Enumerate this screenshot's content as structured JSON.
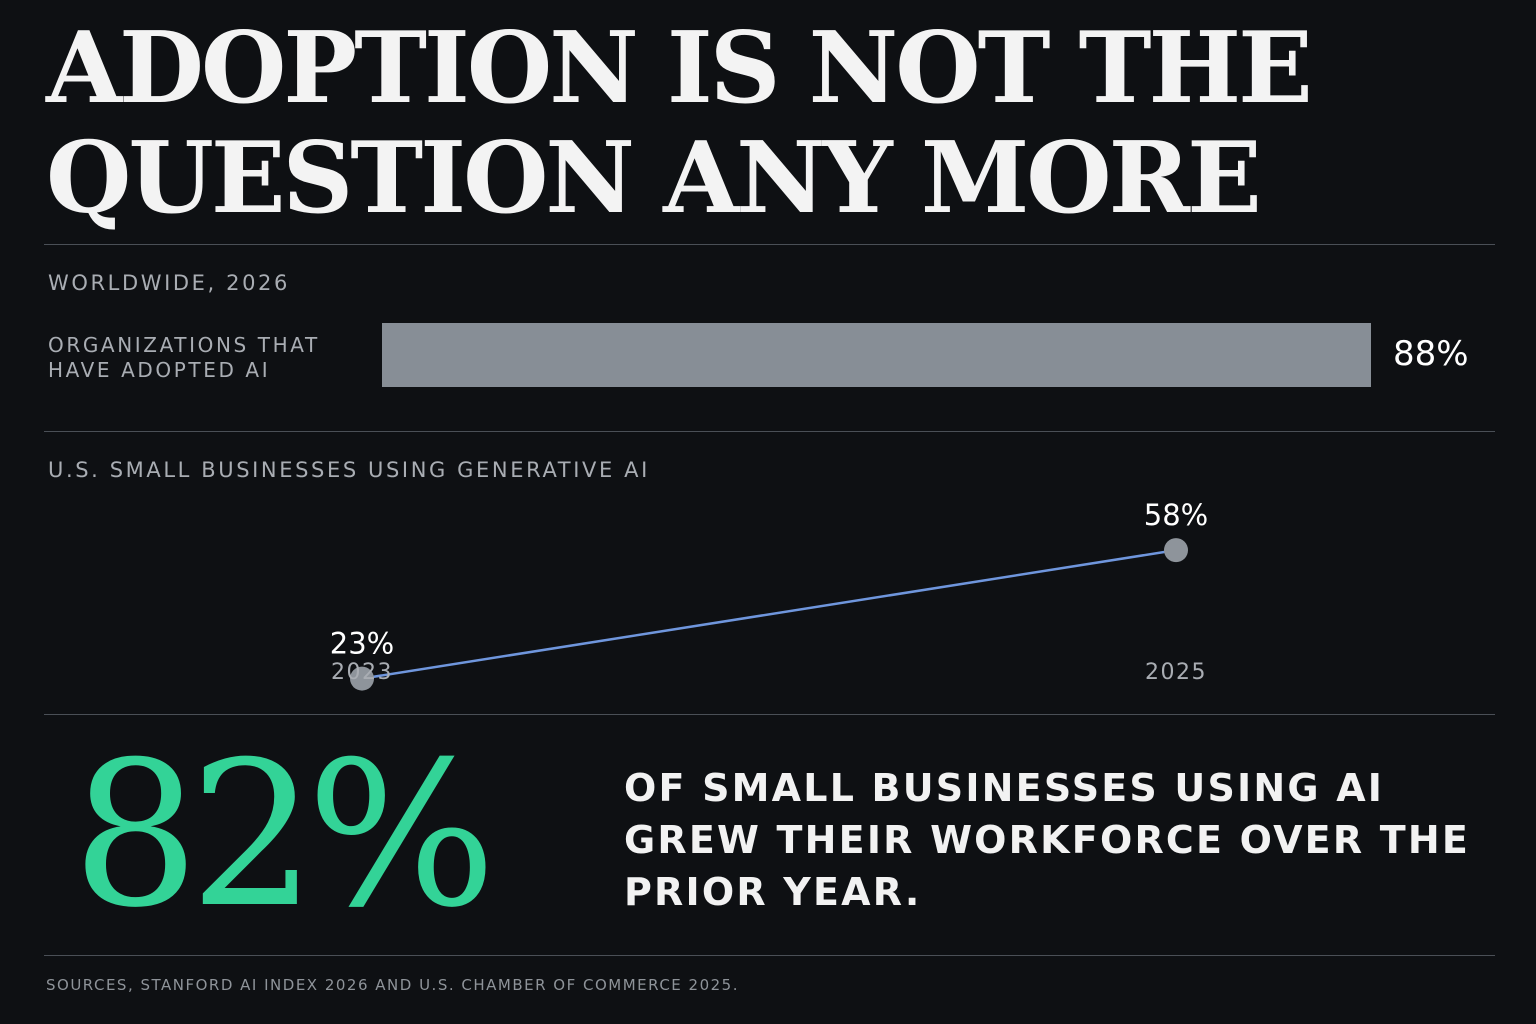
{
  "headline": {
    "line1": "ADOPTION IS NOT THE",
    "line2": "QUESTION ANY MORE"
  },
  "worldwide": {
    "section_label": "WORLDWIDE, 2026",
    "bar_label": "ORGANIZATIONS THAT HAVE ADOPTED AI",
    "value_label": "88%"
  },
  "small_business": {
    "section_label": "U.S. SMALL BUSINESSES USING GENERATIVE AI"
  },
  "chart_data": [
    {
      "type": "bar",
      "title": "WORLDWIDE, 2026",
      "categories": [
        "ORGANIZATIONS THAT HAVE ADOPTED AI"
      ],
      "values": [
        88
      ],
      "data_labels": [
        "88%"
      ],
      "ylim": [
        0,
        100
      ],
      "orientation": "horizontal",
      "grid": false,
      "color": "#878e96"
    },
    {
      "type": "line",
      "title": "U.S. SMALL BUSINESSES USING GENERATIVE AI",
      "x": [
        "2023",
        "2025"
      ],
      "y": [
        23,
        58
      ],
      "data_labels": [
        "23%",
        "58%"
      ],
      "grid": false,
      "line_color": "#6f96dd",
      "point_color": "#8e949b"
    }
  ],
  "highlight": {
    "value": "82%",
    "text": "OF SMALL BUSINESSES USING AI GREW THEIR WORKFORCE OVER THE PRIOR YEAR.",
    "color": "#33d397"
  },
  "sources": "SOURCES, STANFORD AI INDEX 2026 AND U.S. CHAMBER OF COMMERCE 2025."
}
